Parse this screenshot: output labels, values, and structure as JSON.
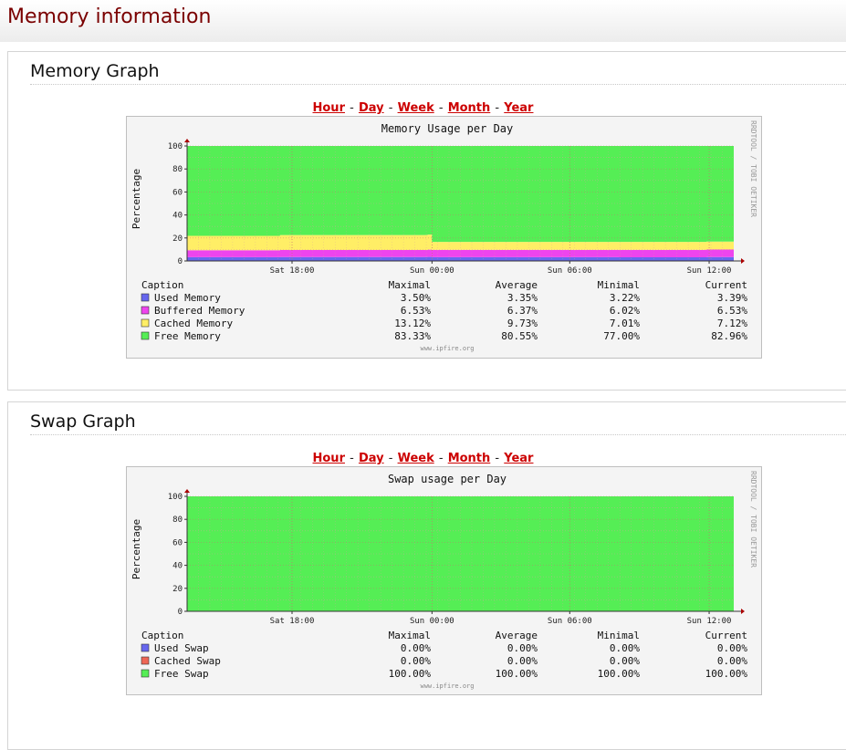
{
  "page": {
    "title": "Memory information"
  },
  "sections": [
    {
      "title": "Memory Graph",
      "nav": [
        "Hour",
        "Day",
        "Week",
        "Month",
        "Year"
      ],
      "graph": {
        "title": "Memory Usage per Day",
        "ylabel": "Percentage",
        "watermark": "RRDTOOL / TOBI OETIKER",
        "footer": "www.ipfire.org",
        "legend_headers": [
          "Caption",
          "Maximal",
          "Average",
          "Minimal",
          "Current"
        ],
        "legend_rows": [
          {
            "name": "Used Memory",
            "color": "#6666ee",
            "values": [
              "3.50%",
              "3.35%",
              "3.22%",
              "3.39%"
            ]
          },
          {
            "name": "Buffered Memory",
            "color": "#ee44ee",
            "values": [
              "6.53%",
              "6.37%",
              "6.02%",
              "6.53%"
            ]
          },
          {
            "name": "Cached Memory",
            "color": "#ffee66",
            "values": [
              "13.12%",
              "9.73%",
              "7.01%",
              "7.12%"
            ]
          },
          {
            "name": "Free Memory",
            "color": "#55ee55",
            "values": [
              "83.33%",
              "80.55%",
              "77.00%",
              "82.96%"
            ]
          }
        ]
      }
    },
    {
      "title": "Swap Graph",
      "nav": [
        "Hour",
        "Day",
        "Week",
        "Month",
        "Year"
      ],
      "graph": {
        "title": "Swap usage per Day",
        "ylabel": "Percentage",
        "watermark": "RRDTOOL / TOBI OETIKER",
        "footer": "www.ipfire.org",
        "legend_headers": [
          "Caption",
          "Maximal",
          "Average",
          "Minimal",
          "Current"
        ],
        "legend_rows": [
          {
            "name": "Used Swap",
            "color": "#6666ee",
            "values": [
              "0.00%",
              "0.00%",
              "0.00%",
              "0.00%"
            ]
          },
          {
            "name": "Cached Swap",
            "color": "#ee6655",
            "values": [
              "0.00%",
              "0.00%",
              "0.00%",
              "0.00%"
            ]
          },
          {
            "name": "Free Swap",
            "color": "#55ee55",
            "values": [
              "100.00%",
              "100.00%",
              "100.00%",
              "100.00%"
            ]
          }
        ]
      }
    }
  ],
  "chart_data": [
    {
      "type": "area",
      "title": "Memory Usage per Day",
      "ylabel": "Percentage",
      "xlabel": "",
      "ylim": [
        0,
        100
      ],
      "x_ticks": [
        "Sat 18:00",
        "Sun 00:00",
        "Sun 06:00",
        "Sun 12:00"
      ],
      "y_ticks": [
        0,
        20,
        40,
        60,
        80,
        100
      ],
      "grid": true,
      "stacked": true,
      "x": [
        0,
        0.17,
        0.44,
        0.448,
        0.79,
        0.95,
        1.0
      ],
      "series": [
        {
          "name": "Used Memory",
          "color": "#6666ee",
          "values": [
            3.3,
            3.4,
            3.5,
            3.3,
            3.2,
            3.4,
            3.4
          ]
        },
        {
          "name": "Buffered Memory",
          "color": "#ee44ee",
          "values": [
            6.0,
            6.1,
            6.3,
            6.3,
            6.4,
            6.5,
            6.5
          ]
        },
        {
          "name": "Cached Memory",
          "color": "#ffee66",
          "values": [
            12.5,
            13.0,
            13.1,
            7.0,
            7.0,
            7.0,
            7.1
          ]
        },
        {
          "name": "Free Memory",
          "color": "#55ee55",
          "values": [
            78.2,
            77.5,
            77.1,
            83.4,
            83.4,
            83.1,
            83.0
          ]
        }
      ]
    },
    {
      "type": "area",
      "title": "Swap usage per Day",
      "ylabel": "Percentage",
      "xlabel": "",
      "ylim": [
        0,
        100
      ],
      "x_ticks": [
        "Sat 18:00",
        "Sun 00:00",
        "Sun 06:00",
        "Sun 12:00"
      ],
      "y_ticks": [
        0,
        20,
        40,
        60,
        80,
        100
      ],
      "grid": true,
      "stacked": true,
      "x": [
        0,
        1.0
      ],
      "series": [
        {
          "name": "Used Swap",
          "color": "#6666ee",
          "values": [
            0,
            0
          ]
        },
        {
          "name": "Cached Swap",
          "color": "#ee6655",
          "values": [
            0,
            0
          ]
        },
        {
          "name": "Free Swap",
          "color": "#55ee55",
          "values": [
            100,
            100
          ]
        }
      ]
    }
  ]
}
